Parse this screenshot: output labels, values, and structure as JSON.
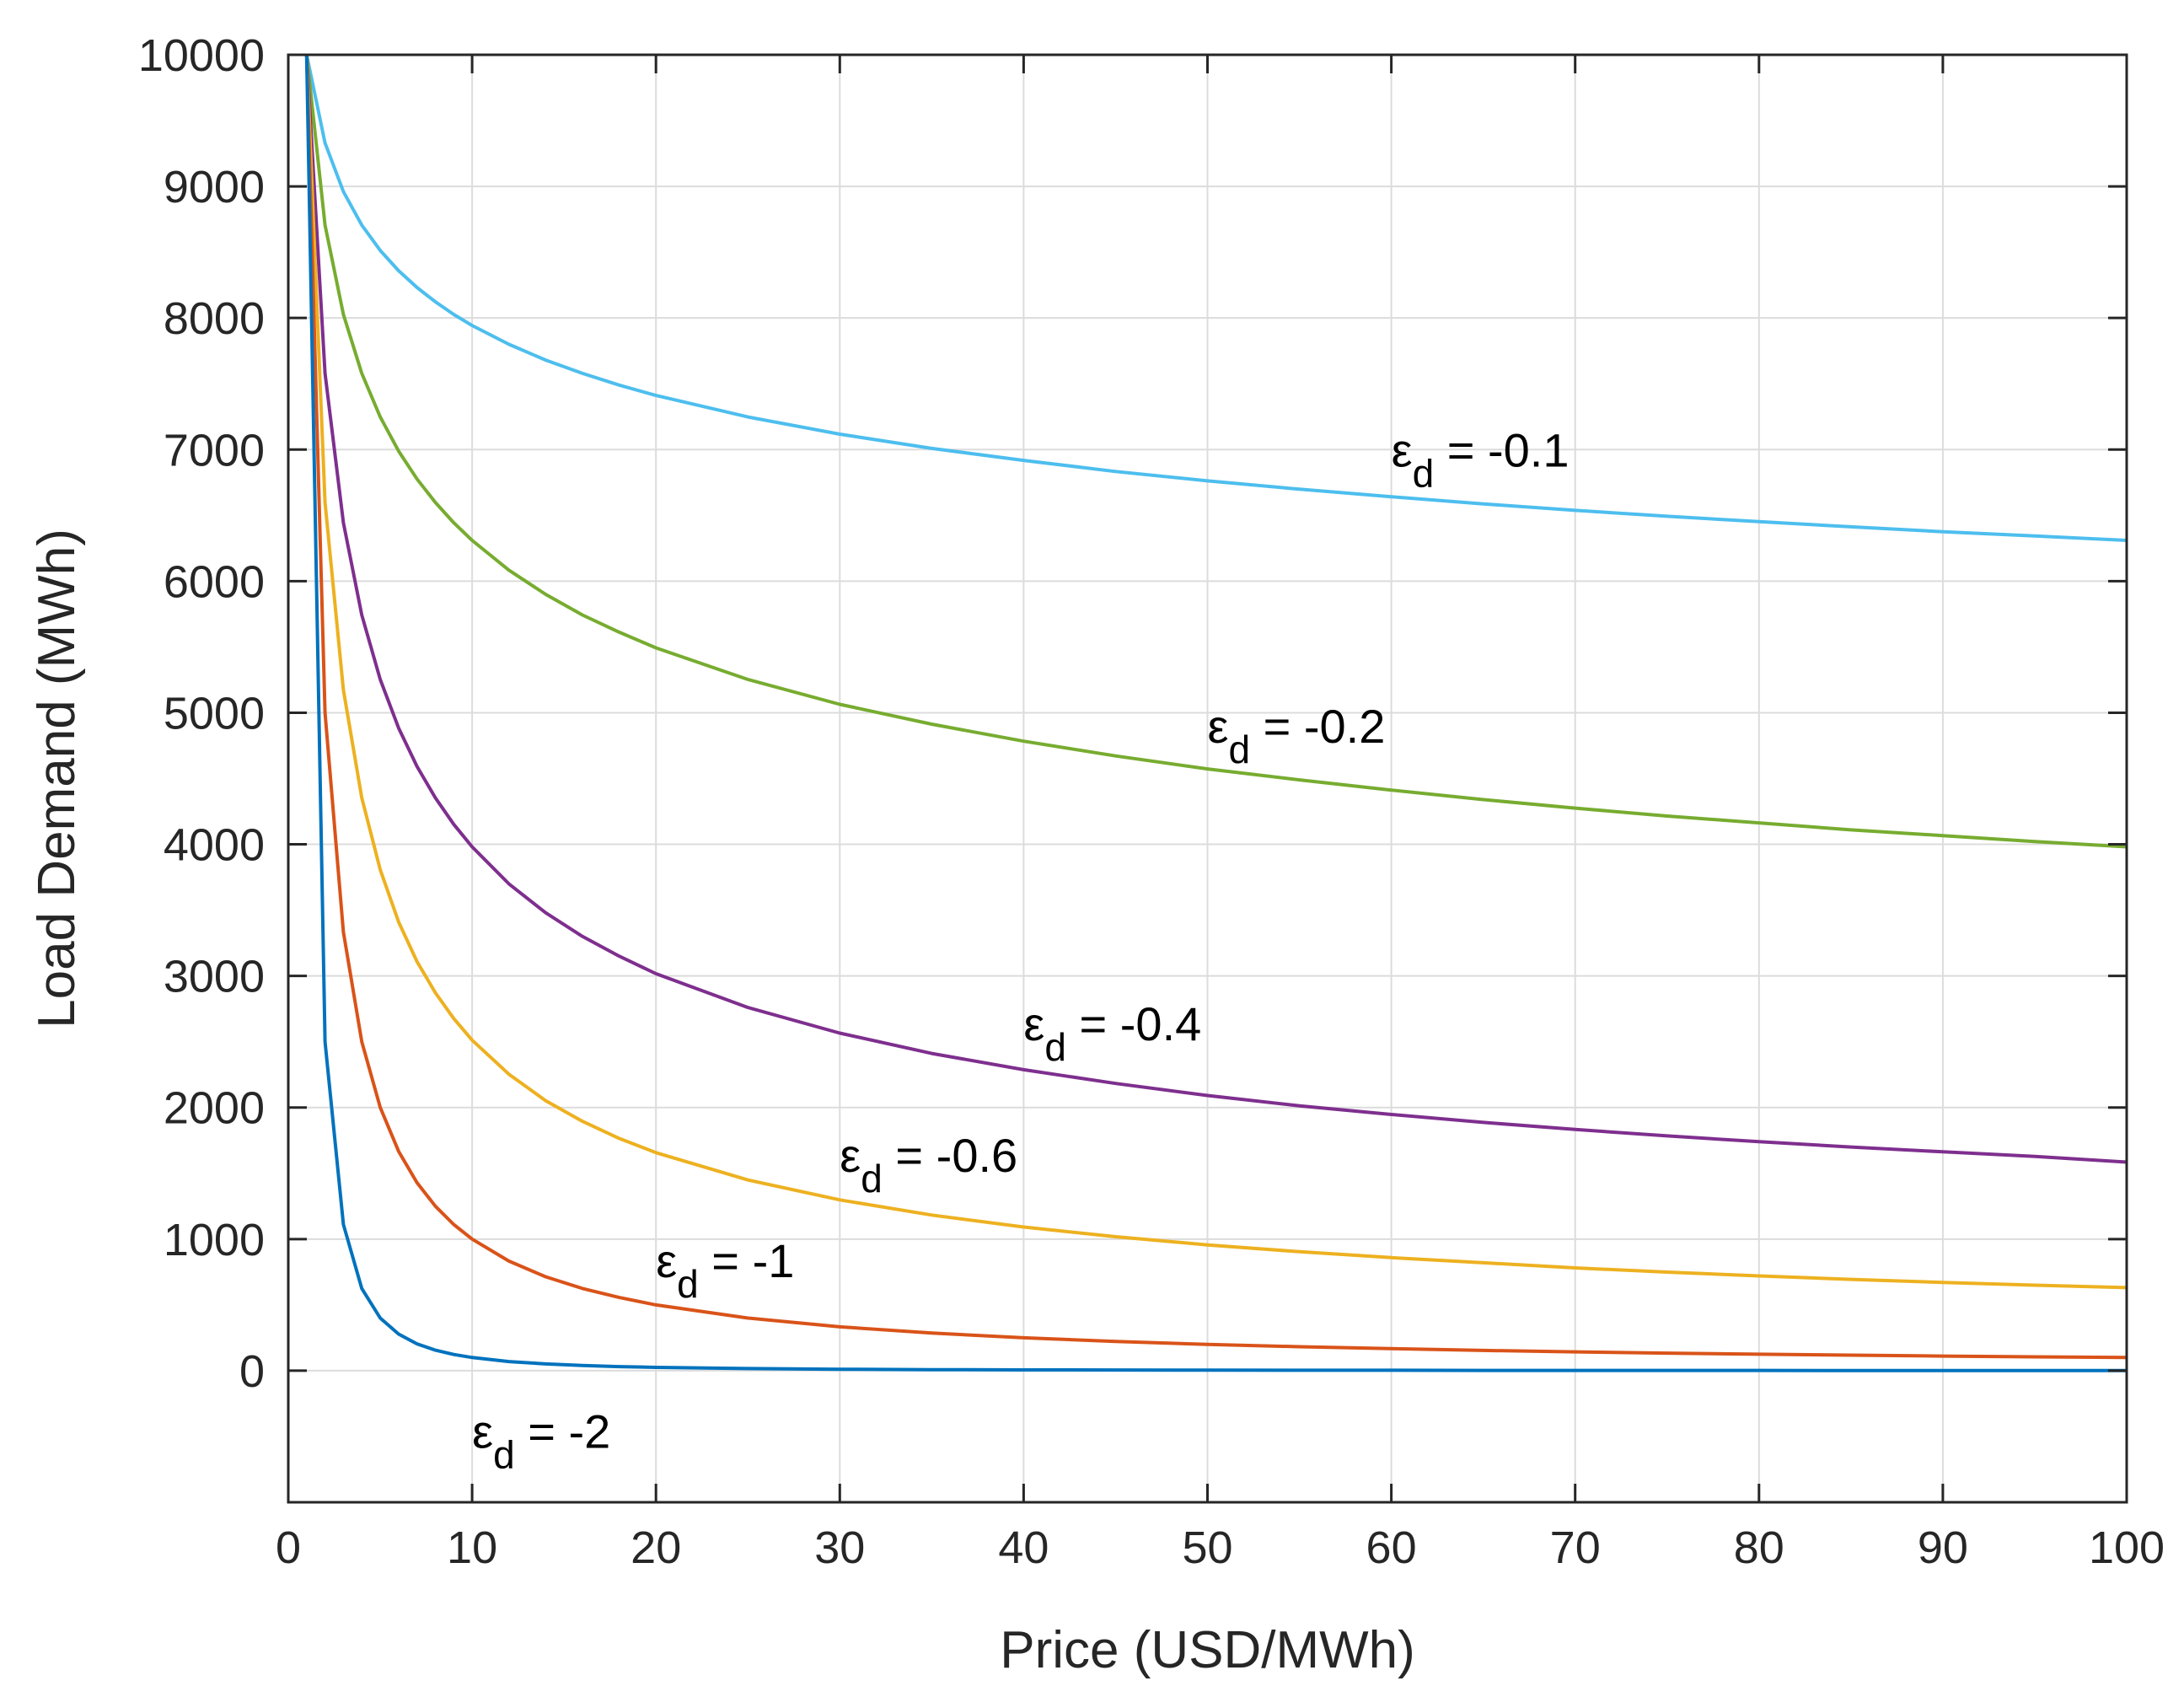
{
  "chart_data": {
    "type": "line",
    "title": "",
    "xlabel": "Price (USD/MWh)",
    "ylabel": "Load Demand (MWh)",
    "xlim": [
      0,
      100
    ],
    "ylim": [
      -1000,
      10000
    ],
    "grid": true,
    "x_ticks": [
      0,
      10,
      20,
      30,
      40,
      50,
      60,
      70,
      80,
      90,
      100
    ],
    "y_ticks": [
      0,
      1000,
      2000,
      3000,
      4000,
      5000,
      6000,
      7000,
      8000,
      9000,
      10000
    ],
    "x_tick_labels": [
      "0",
      "10",
      "20",
      "30",
      "40",
      "50",
      "60",
      "70",
      "80",
      "90",
      "100"
    ],
    "y_tick_labels": [
      "0",
      "1000",
      "2000",
      "3000",
      "4000",
      "5000",
      "6000",
      "7000",
      "8000",
      "9000",
      "10000"
    ],
    "x": [
      1,
      2,
      3,
      4,
      5,
      6,
      7,
      8,
      9,
      10,
      12,
      14,
      16,
      18,
      20,
      25,
      30,
      35,
      40,
      45,
      50,
      55,
      60,
      65,
      70,
      75,
      80,
      85,
      90,
      95,
      100
    ],
    "series": [
      {
        "name": "εd = -0.1",
        "color": "#4DBEEE",
        "values": [
          10000,
          9330,
          8960,
          8706,
          8513,
          8359,
          8232,
          8123,
          8027,
          7943,
          7800,
          7680,
          7579,
          7490,
          7411,
          7248,
          7117,
          7009,
          6918,
          6833,
          6762,
          6699,
          6642,
          6587,
          6538,
          6493,
          6452,
          6413,
          6376,
          6343,
          6310
        ]
      },
      {
        "name": "εd = -0.2",
        "color": "#77AC30",
        "values": [
          10000,
          8706,
          8027,
          7579,
          7248,
          6988,
          6776,
          6598,
          6444,
          6310,
          6084,
          5900,
          5743,
          5612,
          5493,
          5253,
          5064,
          4913,
          4784,
          4672,
          4573,
          4490,
          4412,
          4340,
          4275,
          4215,
          4163,
          4110,
          4066,
          4021,
          3981
        ]
      },
      {
        "name": "εd = -0.4",
        "color": "#7E2F8E",
        "values": [
          10000,
          7579,
          6444,
          5743,
          5253,
          4884,
          4592,
          4353,
          4152,
          3981,
          3700,
          3480,
          3300,
          3150,
          3017,
          2760,
          2565,
          2411,
          2287,
          2183,
          2091,
          2013,
          1947,
          1887,
          1833,
          1784,
          1740,
          1700,
          1663,
          1628,
          1585
        ]
      },
      {
        "name": "εd = -0.6",
        "color": "#EDB120",
        "values": [
          10000,
          6598,
          5173,
          4353,
          3807,
          3410,
          3109,
          2872,
          2676,
          2512,
          2253,
          2052,
          1895,
          1765,
          1657,
          1449,
          1298,
          1183,
          1092,
          1018,
          956,
          904,
          859,
          820,
          781,
          749,
          720,
          694,
          671,
          650,
          631
        ]
      },
      {
        "name": "εd = -1",
        "color": "#D95319",
        "values": [
          10000,
          5000,
          3333,
          2500,
          2000,
          1667,
          1429,
          1250,
          1111,
          1000,
          833,
          714,
          625,
          556,
          500,
          400,
          333,
          286,
          250,
          222,
          200,
          182,
          167,
          154,
          143,
          133,
          125,
          118,
          111,
          105,
          100
        ]
      },
      {
        "name": "εd = -2",
        "color": "#0072BD",
        "values": [
          10000,
          2500,
          1111,
          625,
          400,
          278,
          204,
          156,
          123,
          100,
          69,
          51,
          39,
          31,
          25,
          16,
          11,
          8,
          6,
          5,
          4,
          3,
          3,
          2,
          2,
          2,
          2,
          1,
          1,
          1,
          1
        ]
      }
    ],
    "annotations": [
      {
        "symbol": "ε",
        "sub": "d",
        "text": " = -0.1",
        "x": 60,
        "y": 7000
      },
      {
        "symbol": "ε",
        "sub": "d",
        "text": " = -0.2",
        "x": 50,
        "y": 4900
      },
      {
        "symbol": "ε",
        "sub": "d",
        "text": " = -0.4",
        "x": 40,
        "y": 2640
      },
      {
        "symbol": "ε",
        "sub": "d",
        "text": " = -0.6",
        "x": 30,
        "y": 1640
      },
      {
        "symbol": "ε",
        "sub": "d",
        "text": " = -1",
        "x": 20,
        "y": 840
      },
      {
        "symbol": "ε",
        "sub": "d",
        "text": " = -2",
        "x": 10,
        "y": -460
      }
    ],
    "colors": {
      "grid": "#dcdcdc",
      "axis": "#262626",
      "background": "#ffffff"
    }
  }
}
